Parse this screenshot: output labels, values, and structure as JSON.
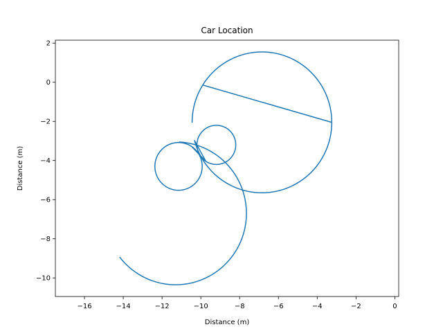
{
  "chart_data": {
    "type": "line",
    "title": "Car Location",
    "xlabel": "Distance (m)",
    "ylabel": "Distance (m)",
    "xlim": [
      -17.5,
      0.2
    ],
    "ylim": [
      -10.95,
      2.15
    ],
    "xticks": [
      -16,
      -14,
      -12,
      -10,
      -8,
      -6,
      -4,
      -2,
      0
    ],
    "yticks": [
      2,
      0,
      -2,
      -4,
      -6,
      -8,
      -10
    ],
    "grid": false,
    "legend": "none",
    "series": [
      {
        "color": "#1f77b4",
        "arcs": [
          {
            "cx": -11.3,
            "cy": -6.7,
            "r": 3.65,
            "from": 218,
            "to": 360
          },
          {
            "cx": -11.3,
            "cy": -6.7,
            "r": 3.65,
            "from": 0,
            "to": 87
          },
          {
            "cx": -11.15,
            "cy": -4.3,
            "r": 1.22,
            "from": 87,
            "to": 447
          },
          {
            "cx": -11.15,
            "cy": -4.3,
            "r": 1.22,
            "from": 87,
            "to": 57
          },
          {
            "cx": -9.2,
            "cy": -3.2,
            "r": 1.0,
            "from": 237,
            "to": 597
          },
          {
            "cx": -6.85,
            "cy": -2.05,
            "r": 3.6,
            "from": 195,
            "to": 540
          },
          {
            "cx": -6.85,
            "cy": -2.05,
            "r": 3.6,
            "from": 180,
            "to": 148
          },
          {
            "cx": -6.85,
            "cy": -2.05,
            "r": 3.6,
            "from": 0,
            "to": -50
          }
        ]
      }
    ]
  }
}
